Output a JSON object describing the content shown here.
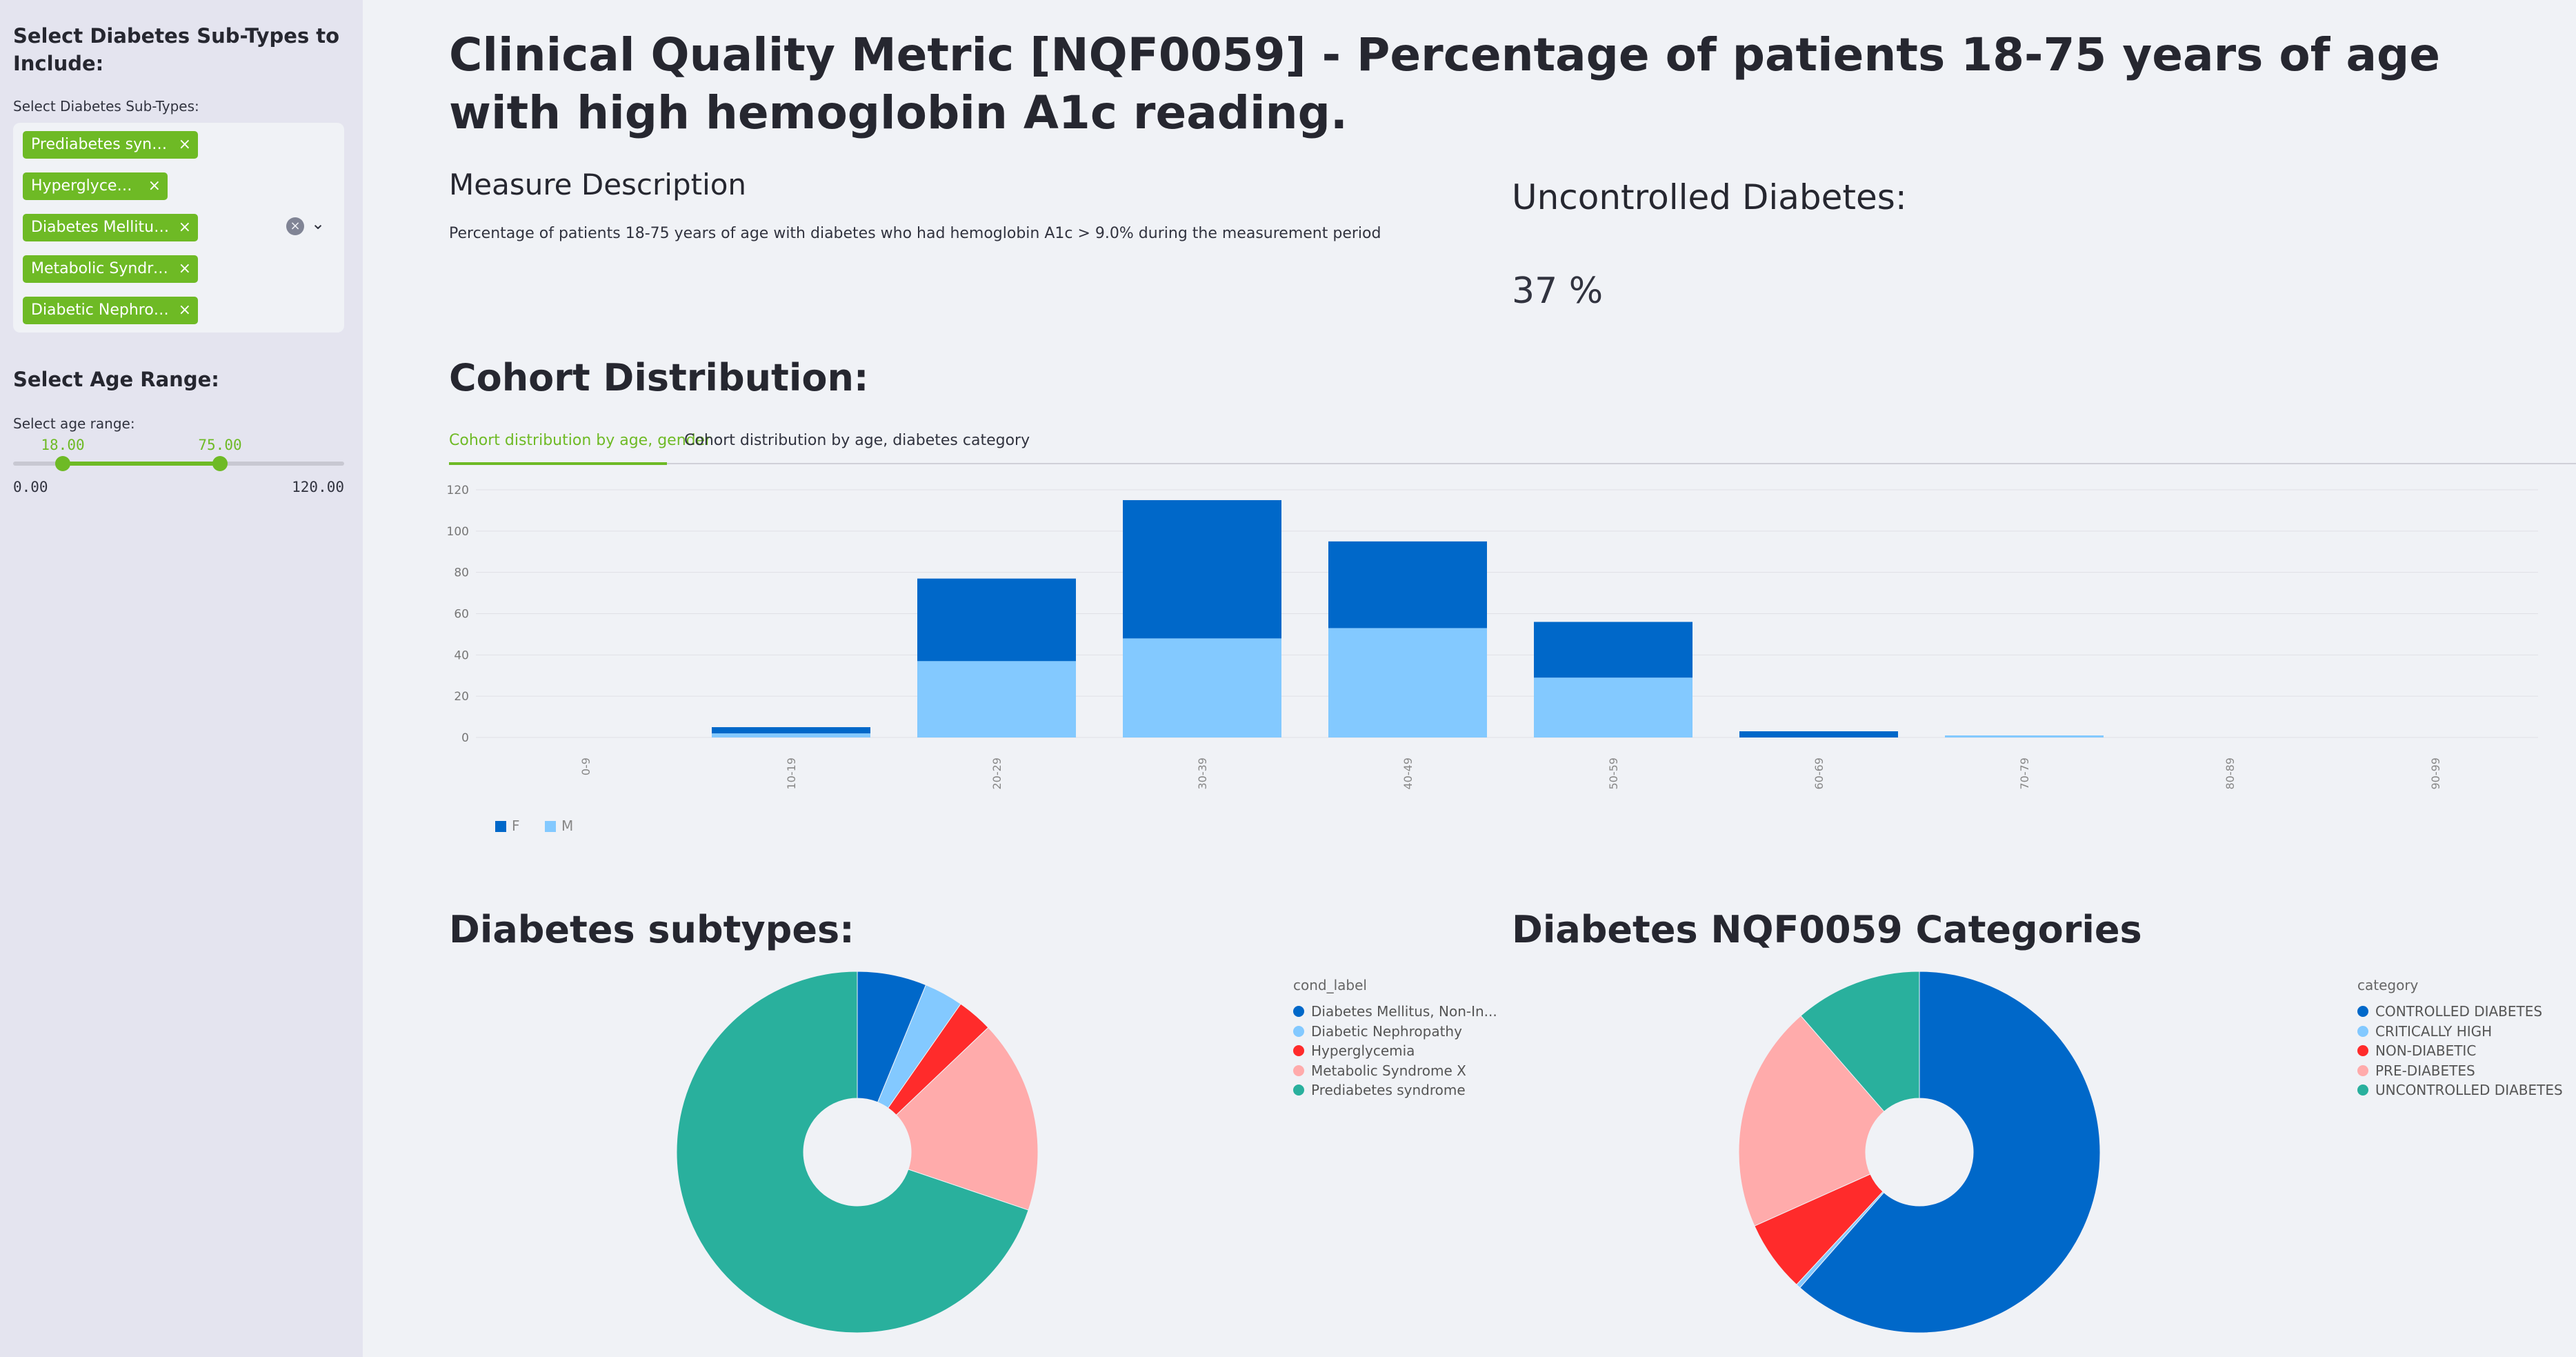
{
  "sidebar": {
    "subtypes_heading": "Select Diabetes Sub-Types to Include:",
    "subtypes_label": "Select Diabetes Sub-Types:",
    "selected_subtypes": [
      "Prediabetes syndrome",
      "Hyperglycemia",
      "Diabetes Mellitus, Non-Insulin-Dependent",
      "Metabolic Syndrome X",
      "Diabetic Nephropathy"
    ],
    "remove_glyph": "×",
    "clear_glyph": "×",
    "chevron_glyph": "⌄",
    "age_heading": "Select Age Range:",
    "age_label": "Select age range:",
    "age_low": "18.00",
    "age_high": "75.00",
    "age_min": "0.00",
    "age_max": "120.00",
    "slider_low_value": 18,
    "slider_high_value": 75,
    "slider_min": 0,
    "slider_max": 120
  },
  "main": {
    "title": "Clinical Quality Metric [NQF0059] - Percentage of patients 18-75 years of age with high hemoglobin A1c reading.",
    "measure_heading": "Measure Description",
    "measure_text": "Percentage of patients 18-75 years of age with diabetes who had hemoglobin A1c > 9.0% during the measurement period",
    "metric_label": "Uncontrolled Diabetes:",
    "metric_value": "37 %",
    "cohort_heading": "Cohort Distribution:",
    "tabs": [
      {
        "label": "Cohort distribution by age, gender"
      },
      {
        "label": "Cohort distribution by age, diabetes category"
      }
    ],
    "subtypes_heading": "Diabetes subtypes:",
    "categories_heading": "Diabetes NQF0059 Categories"
  },
  "colors": {
    "accent": "#6eba25",
    "dark_blue": "#0068c9",
    "light_blue": "#83c9ff",
    "red": "#ff2b2b",
    "pink": "#ffabab",
    "teal": "#29b09d"
  },
  "chart_data": [
    {
      "type": "bar",
      "stacked": true,
      "categories": [
        "0-9",
        "10-19",
        "20-29",
        "30-39",
        "40-49",
        "50-59",
        "60-69",
        "70-79",
        "80-89",
        "90-99"
      ],
      "series": [
        {
          "name": "M",
          "color": "#83c9ff",
          "values": [
            0,
            2,
            37,
            48,
            53,
            29,
            0,
            1,
            0,
            0
          ]
        },
        {
          "name": "F",
          "color": "#0068c9",
          "values": [
            0,
            3,
            40,
            67,
            42,
            27,
            3,
            0,
            0,
            0
          ]
        }
      ],
      "ylim": [
        0,
        120
      ],
      "yticks": [
        0,
        20,
        40,
        60,
        80,
        100,
        120
      ],
      "legend_order": [
        "F",
        "M"
      ],
      "legend": "bottom-left",
      "grid": true
    },
    {
      "type": "pie",
      "donut": true,
      "legend_title": "cond_label",
      "labels": [
        "Diabetes Mellitus, Non-In...",
        "Diabetic Nephropathy",
        "Hyperglycemia",
        "Metabolic Syndrome X",
        "Prediabetes syndrome"
      ],
      "values": [
        6.2,
        3.5,
        3.2,
        17.3,
        69.8
      ],
      "colors": [
        "#0068c9",
        "#83c9ff",
        "#ff2b2b",
        "#ffabab",
        "#29b09d"
      ],
      "legend": "right"
    },
    {
      "type": "pie",
      "donut": true,
      "legend_title": "category",
      "labels": [
        "CONTROLLED DIABETES",
        "CRITICALLY HIGH",
        "NON-DIABETIC",
        "PRE-DIABETES",
        "UNCONTROLLED DIABETES"
      ],
      "values": [
        61.5,
        0.4,
        6.4,
        20.3,
        11.4
      ],
      "colors": [
        "#0068c9",
        "#83c9ff",
        "#ff2b2b",
        "#ffabab",
        "#29b09d"
      ],
      "legend": "right"
    }
  ]
}
